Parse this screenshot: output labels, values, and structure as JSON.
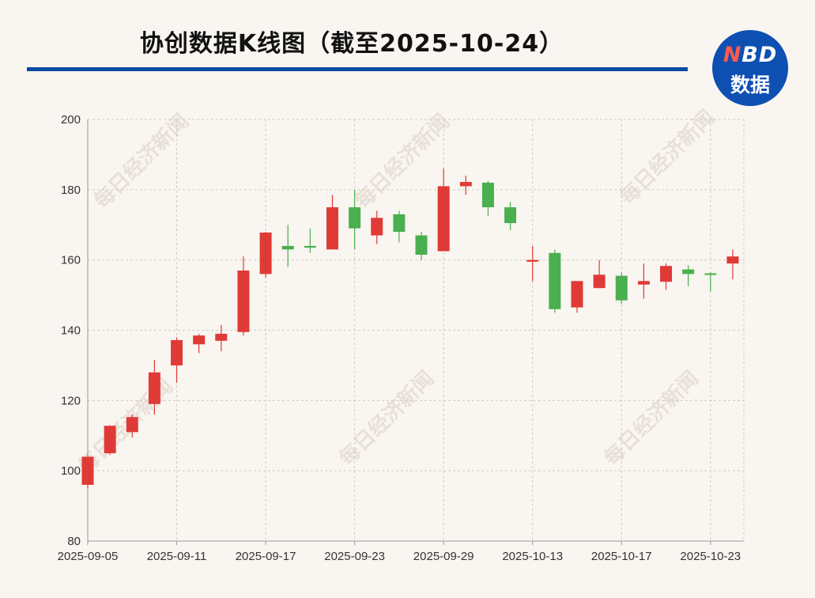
{
  "title": "协创数据K线图（截至2025-10-24）",
  "logo": {
    "n": "N",
    "bd": "BD",
    "line2": "数据"
  },
  "watermark": "每日经济新闻",
  "colors": {
    "up": "#e03a37",
    "down": "#4aaf4f",
    "title_rule": "#0a4aa3",
    "logo_bg": "#0e4fb2"
  },
  "chart_data": {
    "type": "candlestick",
    "title": "协创数据K线图（截至2025-10-24）",
    "ylim": [
      80,
      200
    ],
    "yticks": [
      80,
      100,
      120,
      140,
      160,
      180,
      200
    ],
    "xtick_labels": [
      "2025-09-05",
      "2025-09-11",
      "2025-09-17",
      "2025-09-23",
      "2025-09-29",
      "2025-10-13",
      "2025-10-17",
      "2025-10-23"
    ],
    "grid": true,
    "candles": [
      {
        "date": "2025-09-05",
        "open": 96.0,
        "close": 104.0,
        "high": 104.5,
        "low": 95.0
      },
      {
        "date": "2025-09-08",
        "open": 105.0,
        "close": 112.8,
        "high": 113.0,
        "low": 104.5
      },
      {
        "date": "2025-09-09",
        "open": 111.0,
        "close": 115.3,
        "high": 116.0,
        "low": 109.5
      },
      {
        "date": "2025-09-10",
        "open": 119.0,
        "close": 128.0,
        "high": 131.5,
        "low": 116.0
      },
      {
        "date": "2025-09-11",
        "open": 130.0,
        "close": 137.2,
        "high": 138.0,
        "low": 125.0
      },
      {
        "date": "2025-09-12",
        "open": 136.0,
        "close": 138.5,
        "high": 139.0,
        "low": 133.5
      },
      {
        "date": "2025-09-15",
        "open": 137.0,
        "close": 139.0,
        "high": 141.5,
        "low": 134.0
      },
      {
        "date": "2025-09-16",
        "open": 139.5,
        "close": 157.0,
        "high": 161.0,
        "low": 138.5
      },
      {
        "date": "2025-09-17",
        "open": 156.0,
        "close": 167.8,
        "high": 168.0,
        "low": 155.0
      },
      {
        "date": "2025-09-18",
        "open": 164.0,
        "close": 163.0,
        "high": 170.0,
        "low": 158.0
      },
      {
        "date": "2025-09-19",
        "open": 164.0,
        "close": 163.5,
        "high": 169.0,
        "low": 162.0
      },
      {
        "date": "2025-09-22",
        "open": 163.0,
        "close": 175.0,
        "high": 178.5,
        "low": 163.0
      },
      {
        "date": "2025-09-23",
        "open": 175.0,
        "close": 169.0,
        "high": 180.0,
        "low": 163.0
      },
      {
        "date": "2025-09-24",
        "open": 167.0,
        "close": 172.0,
        "high": 174.0,
        "low": 164.5
      },
      {
        "date": "2025-09-25",
        "open": 173.0,
        "close": 168.0,
        "high": 174.0,
        "low": 165.0
      },
      {
        "date": "2025-09-26",
        "open": 167.0,
        "close": 161.5,
        "high": 168.0,
        "low": 160.0
      },
      {
        "date": "2025-09-29",
        "open": 162.5,
        "close": 181.0,
        "high": 186.0,
        "low": 162.5
      },
      {
        "date": "2025-09-30",
        "open": 181.0,
        "close": 182.2,
        "high": 184.0,
        "low": 178.5
      },
      {
        "date": "2025-10-09",
        "open": 182.0,
        "close": 175.0,
        "high": 182.5,
        "low": 172.5
      },
      {
        "date": "2025-10-10",
        "open": 175.0,
        "close": 170.5,
        "high": 176.5,
        "low": 168.5
      },
      {
        "date": "2025-10-13",
        "open": 159.5,
        "close": 160.0,
        "high": 164.0,
        "low": 154.0
      },
      {
        "date": "2025-10-14",
        "open": 162.0,
        "close": 146.0,
        "high": 163.0,
        "low": 145.0
      },
      {
        "date": "2025-10-15",
        "open": 146.5,
        "close": 154.0,
        "high": 154.0,
        "low": 145.0
      },
      {
        "date": "2025-10-16",
        "open": 152.0,
        "close": 155.8,
        "high": 160.0,
        "low": 152.0
      },
      {
        "date": "2025-10-17",
        "open": 155.5,
        "close": 148.5,
        "high": 156.5,
        "low": 147.5
      },
      {
        "date": "2025-10-20",
        "open": 153.0,
        "close": 154.0,
        "high": 159.0,
        "low": 149.0
      },
      {
        "date": "2025-10-21",
        "open": 153.8,
        "close": 158.3,
        "high": 159.0,
        "low": 151.5
      },
      {
        "date": "2025-10-22",
        "open": 157.3,
        "close": 156.0,
        "high": 158.5,
        "low": 152.5
      },
      {
        "date": "2025-10-23",
        "open": 156.2,
        "close": 155.8,
        "high": 156.5,
        "low": 151.0
      },
      {
        "date": "2025-10-24",
        "open": 159.0,
        "close": 161.0,
        "high": 163.0,
        "low": 154.5
      }
    ]
  }
}
